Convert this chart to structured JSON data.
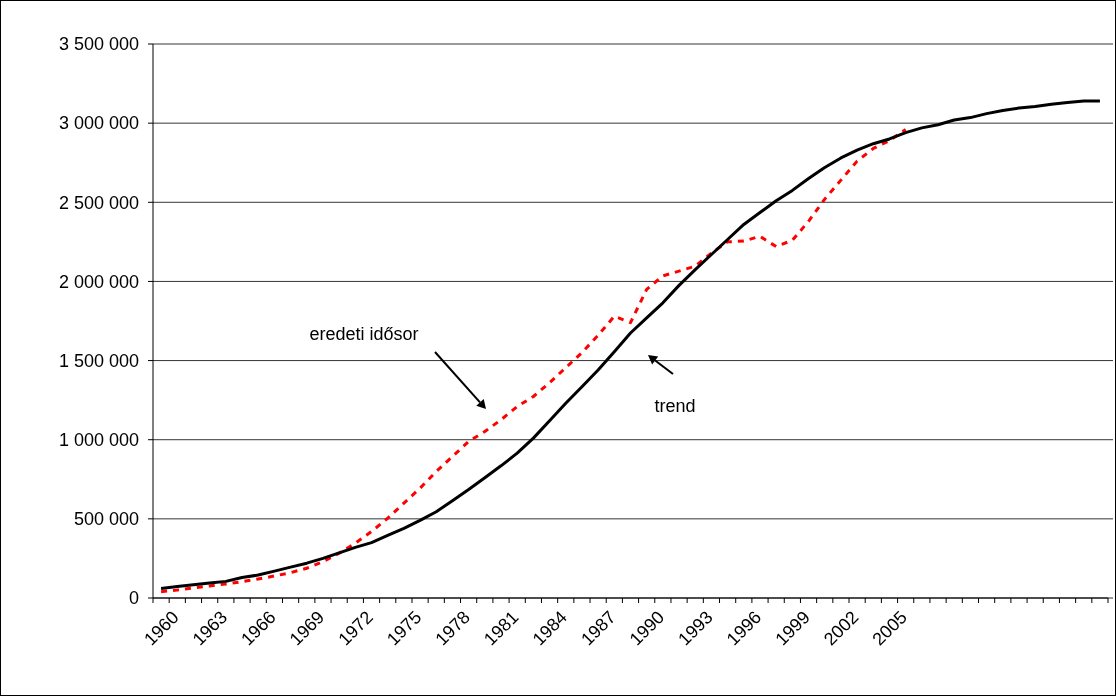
{
  "chart_data": {
    "type": "line",
    "categories": [
      "1960",
      null,
      null,
      "1963",
      null,
      null,
      "1966",
      null,
      null,
      "1969",
      null,
      null,
      "1972",
      null,
      null,
      "1975",
      null,
      null,
      "1978",
      null,
      null,
      "1981",
      null,
      null,
      "1984",
      null,
      null,
      "1987",
      null,
      null,
      "1990",
      null,
      null,
      "1993",
      null,
      null,
      "1996",
      null,
      null,
      "1999",
      null,
      null,
      "2002",
      null,
      null,
      "2005",
      null,
      null,
      null,
      null,
      null,
      null,
      null,
      null,
      null,
      null,
      null,
      null,
      null
    ],
    "series": [
      {
        "color": "#ff0000",
        "line_style": "dashed",
        "values": [
          40000,
          50000,
          63000,
          76000,
          89000,
          103000,
          120000,
          139000,
          160000,
          188000,
          230000,
          283000,
          346000,
          420000,
          504000,
          599000,
          694000,
          799000,
          894000,
          989000,
          1052000,
          1126000,
          1210000,
          1273000,
          1360000,
          1455000,
          1550000,
          1660000,
          1780000,
          1740000,
          1950000,
          2035000,
          2065000,
          2097000,
          2180000,
          2250000,
          2255000,
          2285000,
          2220000,
          2260000,
          2380000,
          2520000,
          2640000,
          2760000,
          2840000,
          2890000,
          2960000,
          null,
          null,
          null,
          null,
          null,
          null,
          null,
          null,
          null,
          null,
          null,
          null
        ]
      },
      {
        "color": "#000000",
        "line_style": "solid",
        "values": [
          60000,
          72000,
          84000,
          95000,
          105000,
          130000,
          145000,
          170000,
          195000,
          220000,
          250000,
          285000,
          320000,
          350000,
          395000,
          440000,
          490000,
          545000,
          615000,
          685000,
          760000,
          835000,
          915000,
          1010000,
          1120000,
          1230000,
          1335000,
          1440000,
          1555000,
          1674000,
          1770000,
          1865000,
          1975000,
          2075000,
          2170000,
          2265000,
          2360000,
          2435000,
          2510000,
          2575000,
          2650000,
          2720000,
          2780000,
          2830000,
          2870000,
          2900000,
          2940000,
          2970000,
          2990000,
          3020000,
          3035000,
          3060000,
          3080000,
          3095000,
          3105000,
          3120000,
          3130000,
          3140000,
          3140000
        ]
      }
    ],
    "ylim": [
      0,
      3500000
    ],
    "yticks": [
      {
        "value": 0,
        "label": "0"
      },
      {
        "value": 500000,
        "label": "500 000"
      },
      {
        "value": 1000000,
        "label": "1 000 000"
      },
      {
        "value": 1500000,
        "label": "1 500 000"
      },
      {
        "value": 2000000,
        "label": "2 000 000"
      },
      {
        "value": 2500000,
        "label": "2 500 000"
      },
      {
        "value": 3000000,
        "label": "3 000 000"
      },
      {
        "value": 3500000,
        "label": "3 500 000"
      }
    ],
    "grid": "y",
    "marker": "none",
    "annotations": [
      "eredeti idősor",
      "trend"
    ]
  }
}
